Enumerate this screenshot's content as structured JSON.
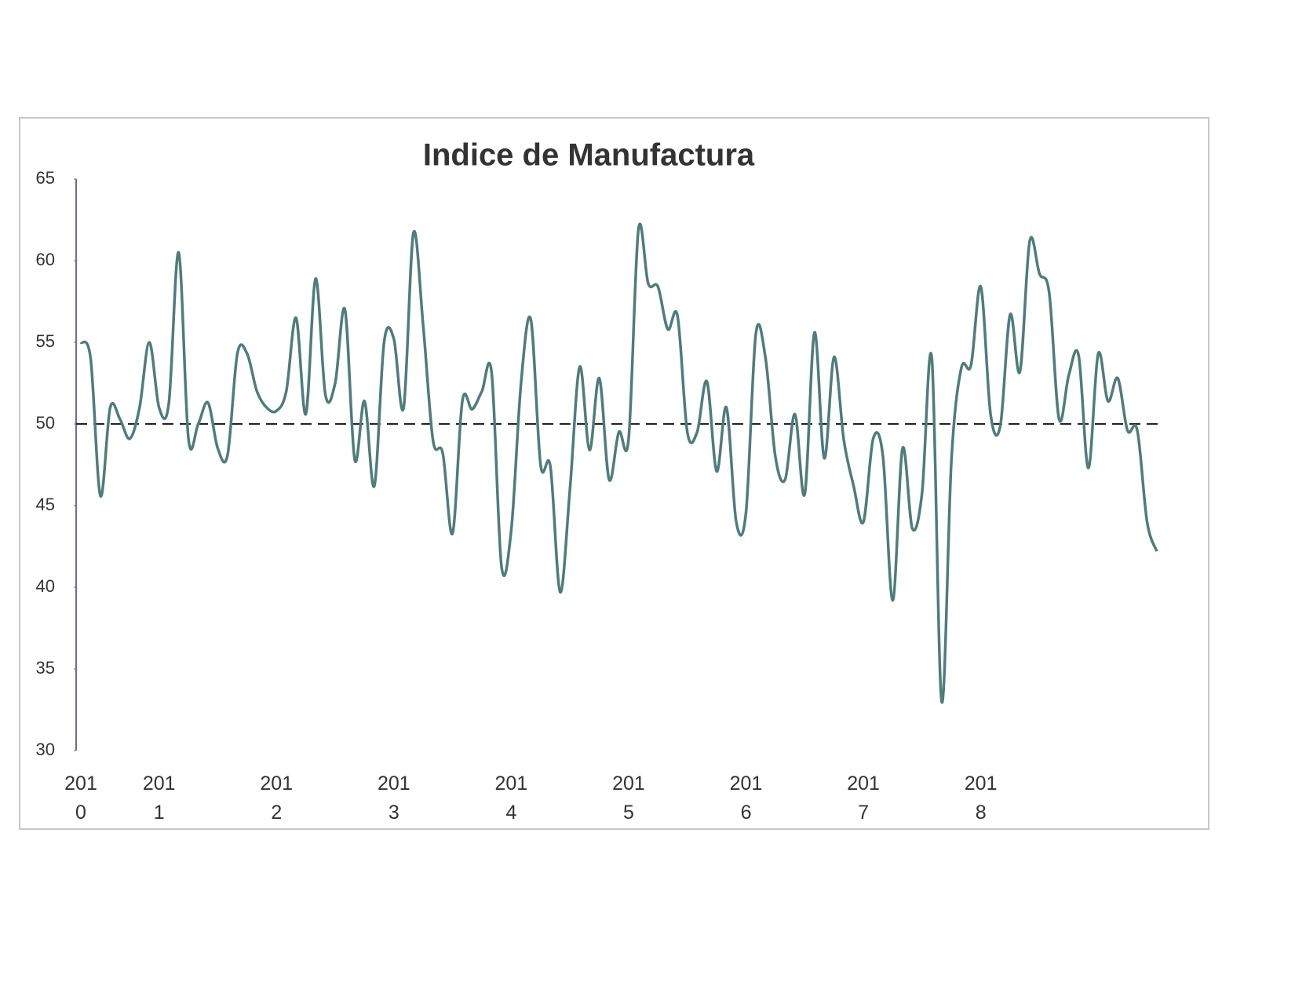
{
  "chart_data": {
    "type": "line",
    "title": "Indice de Manufactura",
    "categories": [
      "2010",
      null,
      null,
      null,
      null,
      null,
      null,
      null,
      "2011",
      null,
      null,
      null,
      null,
      null,
      null,
      null,
      null,
      null,
      null,
      null,
      "2012",
      null,
      null,
      null,
      null,
      null,
      null,
      null,
      null,
      null,
      null,
      null,
      "2013",
      null,
      null,
      null,
      null,
      null,
      null,
      null,
      null,
      null,
      null,
      null,
      "2014",
      null,
      null,
      null,
      null,
      null,
      null,
      null,
      null,
      null,
      null,
      null,
      "2015",
      null,
      null,
      null,
      null,
      null,
      null,
      null,
      null,
      null,
      null,
      null,
      "2016",
      null,
      null,
      null,
      null,
      null,
      null,
      null,
      null,
      null,
      null,
      null,
      "2017",
      null,
      null,
      null,
      null,
      null,
      null,
      null,
      null,
      null,
      null,
      null,
      "2018",
      null,
      null,
      null,
      null,
      null,
      null,
      null,
      null,
      null,
      null,
      null,
      null,
      null,
      null,
      null,
      null,
      null,
      null
    ],
    "values": [
      55,
      54,
      45.6,
      51,
      50.3,
      49.1,
      51,
      55,
      51,
      51.3,
      60.5,
      49.1,
      50,
      51.3,
      48.5,
      48.1,
      54.3,
      54.3,
      52,
      51,
      50.8,
      52,
      56.5,
      50.6,
      58.9,
      51.8,
      52.5,
      57,
      47.8,
      51.4,
      46.2,
      55,
      55.2,
      51,
      61.7,
      56,
      49,
      48.2,
      43.3,
      51.4,
      50.9,
      52,
      53.1,
      41.3,
      43.5,
      52.5,
      56.4,
      47.5,
      47.4,
      39.7,
      46,
      53.5,
      48.4,
      52.8,
      46.6,
      49.5,
      49.1,
      61.9,
      58.6,
      58.4,
      55.8,
      56.6,
      49.5,
      49.5,
      52.6,
      47.1,
      51,
      44,
      44.6,
      55.5,
      54,
      48,
      46.6,
      50.6,
      45.7,
      55.6,
      47.9,
      54.1,
      49,
      46.2,
      44,
      49.1,
      48,
      39.2,
      48.5,
      43.6,
      45.8,
      54,
      33,
      47.8,
      53.4,
      53.6,
      58.4,
      50.6,
      49.9,
      56.7,
      53.2,
      61.2,
      59.2,
      58,
      50.3,
      53,
      54.2,
      47.3,
      54.3,
      51.4,
      52.8,
      49.6,
      49.6,
      44,
      42.2
    ],
    "color": "#4e7d7a",
    "ylim": [
      30,
      65
    ],
    "yticks": [
      30,
      35,
      40,
      45,
      50,
      55,
      60,
      65
    ],
    "reference_line": 50
  }
}
